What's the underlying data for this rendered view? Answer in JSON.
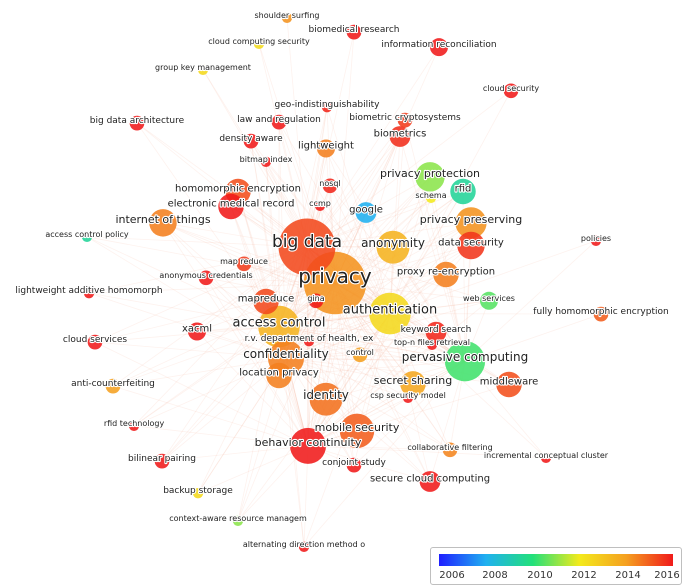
{
  "colors": {
    "scale": [
      "#1f1fff",
      "#20b0f0",
      "#22e07a",
      "#f3ea1c",
      "#f5a020",
      "#f01a1a"
    ],
    "links": "#f3b8a0"
  },
  "legend": {
    "ticks": [
      "2006",
      "2008",
      "2010",
      "2012",
      "2014",
      "2016"
    ]
  },
  "nodes": [
    {
      "label": "shoulder surfing",
      "year": 2014.2,
      "weight": 1
    },
    {
      "label": "biomedical research",
      "year": 2016,
      "weight": 2
    },
    {
      "label": "cloud computing security",
      "year": 2012.4,
      "weight": 1
    },
    {
      "label": "information reconciliation",
      "year": 2016,
      "weight": 3
    },
    {
      "label": "group key management",
      "year": 2012.5,
      "weight": 1
    },
    {
      "label": "cloud security",
      "year": 2016,
      "weight": 2
    },
    {
      "label": "geo-indistinguishability",
      "year": 2015.8,
      "weight": 1
    },
    {
      "label": "big data architecture",
      "year": 2016,
      "weight": 2
    },
    {
      "label": "law and regulation",
      "year": 2016,
      "weight": 2
    },
    {
      "label": "biometric cryptosystems",
      "year": 2015.5,
      "weight": 2
    },
    {
      "label": "biometrics",
      "year": 2015.7,
      "weight": 4
    },
    {
      "label": "density aware",
      "year": 2016,
      "weight": 2
    },
    {
      "label": "lightweight",
      "year": 2014.5,
      "weight": 3
    },
    {
      "label": "bitmap index",
      "year": 2016,
      "weight": 1
    },
    {
      "label": "privacy protection",
      "year": 2011,
      "weight": 8
    },
    {
      "label": "homomorphic encryption",
      "year": 2015.2,
      "weight": 6
    },
    {
      "label": "nosql",
      "year": 2015.8,
      "weight": 2
    },
    {
      "label": "rfid",
      "year": 2009.5,
      "weight": 6
    },
    {
      "label": "schema",
      "year": 2012,
      "weight": 1
    },
    {
      "label": "electronic medical record",
      "year": 2016,
      "weight": 6
    },
    {
      "label": "ccmp",
      "year": 2016,
      "weight": 1
    },
    {
      "label": "google",
      "year": 2008,
      "weight": 4
    },
    {
      "label": "privacy preserving",
      "year": 2014.2,
      "weight": 9
    },
    {
      "label": "internet of things",
      "year": 2014.5,
      "weight": 7
    },
    {
      "label": "big data",
      "year": 2015.3,
      "weight": 30
    },
    {
      "label": "anonymity",
      "year": 2013.5,
      "weight": 10
    },
    {
      "label": "data security",
      "year": 2015.6,
      "weight": 7
    },
    {
      "label": "access control policy",
      "year": 2009.5,
      "weight": 1
    },
    {
      "label": "policies",
      "year": 2016,
      "weight": 1
    },
    {
      "label": "map reduce",
      "year": 2015.5,
      "weight": 2
    },
    {
      "label": "proxy re-encryption",
      "year": 2014.5,
      "weight": 6
    },
    {
      "label": "anonymous credentials",
      "year": 2016,
      "weight": 2
    },
    {
      "label": "privacy",
      "year": 2014.2,
      "weight": 36
    },
    {
      "label": "lightweight additive homomorph",
      "year": 2016,
      "weight": 1
    },
    {
      "label": "web services",
      "year": 2010.5,
      "weight": 3
    },
    {
      "label": "mapreduce",
      "year": 2015.3,
      "weight": 6
    },
    {
      "label": "gina",
      "year": 2016,
      "weight": 2
    },
    {
      "label": "authentication",
      "year": 2012.5,
      "weight": 16
    },
    {
      "label": "fully homomorphic encryption",
      "year": 2015,
      "weight": 2
    },
    {
      "label": "access control",
      "year": 2013.5,
      "weight": 16
    },
    {
      "label": "keyword search",
      "year": 2015.8,
      "weight": 4
    },
    {
      "label": "xacml",
      "year": 2016,
      "weight": 3
    },
    {
      "label": "top-n files retrieval",
      "year": 2016,
      "weight": 1
    },
    {
      "label": "cloud services",
      "year": 2016,
      "weight": 2
    },
    {
      "label": "r.v. department of health, ex",
      "year": 2016,
      "weight": 1
    },
    {
      "label": "confidentiality",
      "year": 2014.5,
      "weight": 12
    },
    {
      "label": "control",
      "year": 2014,
      "weight": 2
    },
    {
      "label": "pervasive computing",
      "year": 2010.3,
      "weight": 15
    },
    {
      "label": "location privacy",
      "year": 2014.5,
      "weight": 6
    },
    {
      "label": "secret sharing",
      "year": 2013.8,
      "weight": 6
    },
    {
      "label": "anti-counterfeiting",
      "year": 2014,
      "weight": 2
    },
    {
      "label": "middleware",
      "year": 2015.2,
      "weight": 6
    },
    {
      "label": "identity",
      "year": 2014.7,
      "weight": 10
    },
    {
      "label": "csp security model",
      "year": 2016,
      "weight": 1
    },
    {
      "label": "rfid technology",
      "year": 2016,
      "weight": 1
    },
    {
      "label": "mobile security",
      "year": 2015,
      "weight": 11
    },
    {
      "label": "collaborative filtering",
      "year": 2014.4,
      "weight": 2
    },
    {
      "label": "behavior continuity",
      "year": 2016,
      "weight": 12
    },
    {
      "label": "incremental conceptual cluster",
      "year": 2016,
      "weight": 1
    },
    {
      "label": "bilinear pairing",
      "year": 2016,
      "weight": 2
    },
    {
      "label": "conjoint study",
      "year": 2016,
      "weight": 2
    },
    {
      "label": "secure cloud computing",
      "year": 2016,
      "weight": 4
    },
    {
      "label": "backup storage",
      "year": 2012.5,
      "weight": 1
    },
    {
      "label": "context-aware resource managem",
      "year": 2011,
      "weight": 1
    },
    {
      "label": "alternating direction method o",
      "year": 2016,
      "weight": 1
    }
  ]
}
